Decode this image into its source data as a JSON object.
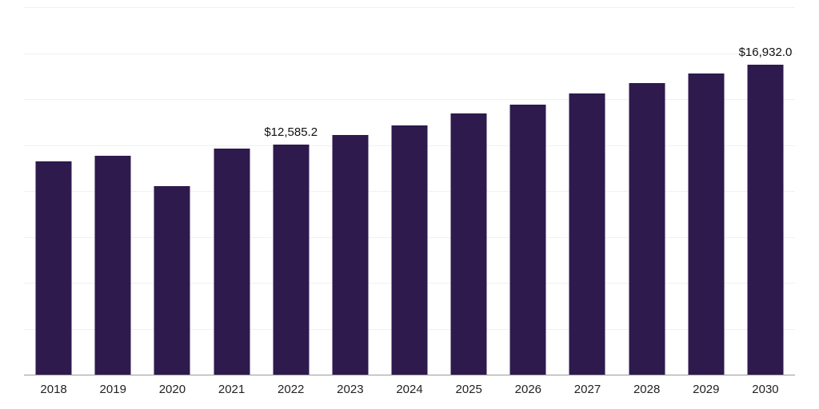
{
  "chart_data": {
    "type": "bar",
    "title": "",
    "xlabel": "",
    "ylabel": "",
    "categories": [
      "2018",
      "2019",
      "2020",
      "2021",
      "2022",
      "2023",
      "2024",
      "2025",
      "2026",
      "2027",
      "2028",
      "2029",
      "2030"
    ],
    "values": [
      11650,
      11950,
      10320,
      12330,
      12585.2,
      13100,
      13610,
      14250,
      14760,
      15360,
      15910,
      16420,
      16932.0
    ],
    "data_labels": [
      {
        "category": "2022",
        "text": "$12,585.2"
      },
      {
        "category": "2030",
        "text": "$16,932.0"
      }
    ],
    "ylim": [
      0,
      20000
    ],
    "grid_step": 2500,
    "grid": true,
    "legend": false,
    "bar_color": "#2e1a4d",
    "gridline_color": "#f0f0f0",
    "axis_line_color": "#9b9b9b",
    "tick_label_color": "#222222",
    "value_label_color": "#111111"
  }
}
